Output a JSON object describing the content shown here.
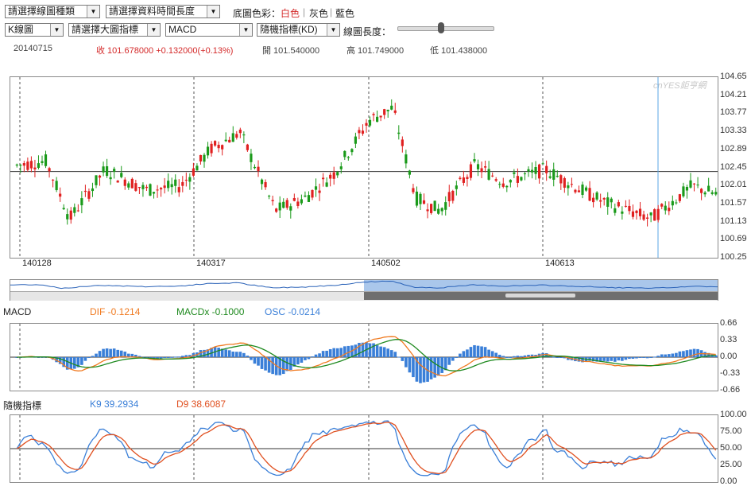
{
  "controls": {
    "chart_type_select": "請選擇線圖種類",
    "period_select": "請選擇資料時間長度",
    "bg_color_label": "底圖色彩：",
    "bg_colors": [
      "白色",
      "灰色",
      "藍色"
    ],
    "bg_color_separator": "|",
    "kline_select": "K線圖",
    "main_indicator_select": "請選擇大圖指標",
    "sub_indicator1_select": "MACD",
    "sub_indicator2_select": "隨機指標(KD)",
    "chart_length_label": "線圖長度：",
    "chart_length_value": 0.45
  },
  "quote": {
    "date": "20140715",
    "close": "收 101.678000 +0.132000(+0.13%)",
    "open": "開 101.540000",
    "high": "高 101.749000",
    "low": "低 101.438000"
  },
  "watermark": "cnYES鉅亨網",
  "main_chart": {
    "y_ticks": [
      "104.65",
      "104.21",
      "103.77",
      "103.33",
      "102.89",
      "102.45",
      "102.01",
      "101.57",
      "101.13",
      "100.69",
      "100.25"
    ],
    "x_ticks": [
      "140128",
      "140317",
      "140502",
      "140613"
    ],
    "crosshair_value": 102.35
  },
  "macd": {
    "title": "MACD",
    "dif": "DIF -0.1214",
    "macdx": "MACDx -0.1000",
    "osc": "OSC -0.0214",
    "y_ticks": [
      "0.66",
      "0.33",
      "0.00",
      "-0.33",
      "-0.66"
    ]
  },
  "kd": {
    "title": "隨機指標",
    "k9": "K9 39.2934",
    "d9": "D9 38.6087",
    "y_ticks": [
      "100.00",
      "75.00",
      "50.00",
      "25.00",
      "0.00"
    ]
  },
  "colors": {
    "up": "#e02020",
    "down": "#1a9a1a",
    "dif": "#f07a20",
    "macdx": "#1f8a1f",
    "osc": "#3a7fd8",
    "k": "#3a7fd8",
    "d": "#e05020",
    "navigator_fill": "#9bbde8"
  }
}
